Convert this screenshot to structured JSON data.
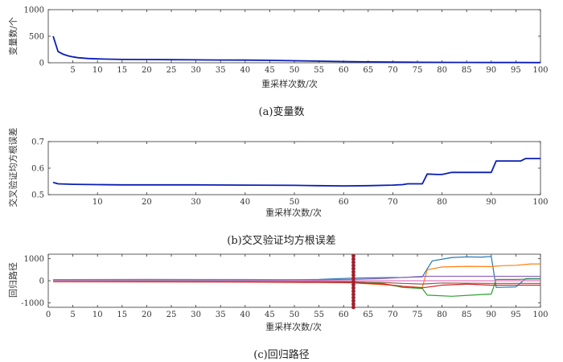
{
  "colors": {
    "primary_line": "#0a1eb4",
    "marker": "#a31f2c",
    "axis": "#333333",
    "grid_tick": "#333333",
    "path_palette": [
      "#1f77b4",
      "#ff7f0e",
      "#2ca02c",
      "#d62728",
      "#9467bd",
      "#8c564b",
      "#e377c2",
      "#7f7f7f",
      "#bcbd22",
      "#17becf",
      "#d95319",
      "#77ac30",
      "#4dbeee",
      "#edb120"
    ]
  },
  "captions": {
    "a": "(a)变量数",
    "b": "(b)交叉验证均方根误差",
    "c": "(c)回归路径"
  },
  "chart_data": [
    {
      "id": "a",
      "type": "line",
      "title": "",
      "xlabel": "重采样次数/次",
      "ylabel": "变量数/个",
      "xlim": [
        0,
        100
      ],
      "ylim": [
        0,
        1000
      ],
      "xticks": [
        5,
        10,
        15,
        20,
        25,
        30,
        35,
        40,
        45,
        50,
        55,
        60,
        65,
        70,
        75,
        80,
        85,
        90,
        95,
        100
      ],
      "yticks": [
        0,
        500,
        1000
      ],
      "series": [
        {
          "x": [
            1,
            2,
            3,
            4,
            5,
            6,
            7,
            8,
            10,
            12,
            15,
            20,
            25,
            30,
            35,
            40,
            45,
            50,
            55,
            60,
            65,
            70,
            75,
            80,
            85,
            90,
            95,
            100
          ],
          "y": [
            500,
            210,
            160,
            130,
            110,
            95,
            88,
            80,
            72,
            68,
            62,
            60,
            58,
            55,
            52,
            50,
            45,
            38,
            30,
            22,
            16,
            12,
            9,
            7,
            6,
            5,
            4,
            3
          ]
        }
      ]
    },
    {
      "id": "b",
      "type": "line",
      "title": "",
      "xlabel": "重采样次数/次",
      "ylabel": "交叉验证均方根误差",
      "xlim": [
        0,
        100
      ],
      "ylim": [
        0.5,
        0.7
      ],
      "xticks": [
        10,
        20,
        30,
        40,
        50,
        60,
        70,
        80,
        90,
        100
      ],
      "yticks": [
        0.5,
        0.6,
        0.7
      ],
      "series": [
        {
          "x": [
            1,
            2,
            5,
            10,
            15,
            20,
            30,
            40,
            50,
            55,
            60,
            65,
            70,
            72,
            73,
            76,
            77,
            79,
            80,
            82,
            83,
            85,
            90,
            91,
            95,
            96,
            97,
            100
          ],
          "y": [
            0.546,
            0.541,
            0.539,
            0.538,
            0.537,
            0.537,
            0.537,
            0.536,
            0.535,
            0.534,
            0.533,
            0.534,
            0.536,
            0.538,
            0.541,
            0.541,
            0.578,
            0.576,
            0.576,
            0.584,
            0.584,
            0.584,
            0.584,
            0.627,
            0.627,
            0.627,
            0.636,
            0.636
          ]
        }
      ]
    },
    {
      "id": "c",
      "type": "line",
      "title": "",
      "xlabel": "重采样次数/次",
      "ylabel": "回归路径",
      "xlim": [
        0,
        100
      ],
      "ylim": [
        -1200,
        1200
      ],
      "xticks": [
        0,
        5,
        10,
        15,
        20,
        25,
        30,
        35,
        40,
        45,
        50,
        55,
        60,
        65,
        70,
        75,
        80,
        85,
        90,
        95,
        100
      ],
      "yticks": [
        -1000,
        0,
        1000
      ],
      "marker_x": 62,
      "series": [
        {
          "x": [
            1,
            20,
            40,
            55,
            62,
            68,
            72,
            76,
            78,
            82,
            85,
            88,
            90,
            91,
            95,
            97,
            100
          ],
          "y": [
            30,
            25,
            20,
            60,
            120,
            140,
            150,
            180,
            900,
            1050,
            1080,
            1070,
            1100,
            -300,
            -280,
            100,
            100
          ]
        },
        {
          "x": [
            1,
            20,
            40,
            55,
            62,
            68,
            72,
            76,
            77,
            80,
            85,
            90,
            92,
            95,
            98,
            100
          ],
          "y": [
            -20,
            -30,
            -40,
            -60,
            -100,
            -180,
            -250,
            -300,
            500,
            620,
            650,
            640,
            680,
            700,
            760,
            760
          ]
        },
        {
          "x": [
            1,
            20,
            40,
            55,
            62,
            68,
            72,
            76,
            77,
            82,
            88,
            90,
            91,
            95,
            98,
            100
          ],
          "y": [
            10,
            5,
            0,
            -20,
            -40,
            -120,
            -300,
            -350,
            -650,
            -700,
            -620,
            -600,
            60,
            60,
            80,
            80
          ]
        },
        {
          "x": [
            1,
            20,
            40,
            55,
            62,
            68,
            72,
            76,
            80,
            85,
            90,
            100
          ],
          "y": [
            -40,
            -50,
            -60,
            -80,
            -90,
            -150,
            -250,
            -320,
            -200,
            -150,
            -200,
            -200
          ]
        },
        {
          "x": [
            1,
            20,
            40,
            55,
            62,
            68,
            72,
            76,
            80,
            90,
            100
          ],
          "y": [
            50,
            60,
            55,
            40,
            60,
            100,
            150,
            200,
            200,
            200,
            200
          ]
        },
        {
          "x": [
            1,
            20,
            40,
            55,
            62,
            68,
            72,
            76,
            80,
            90,
            100
          ],
          "y": [
            -10,
            -5,
            -15,
            -30,
            -60,
            -80,
            -120,
            -150,
            -100,
            -120,
            -120
          ]
        },
        {
          "x": [
            1,
            20,
            40,
            55,
            62,
            70,
            76,
            77,
            100
          ],
          "y": [
            0,
            0,
            0,
            0,
            0,
            0,
            0,
            0,
            0
          ]
        }
      ]
    }
  ]
}
